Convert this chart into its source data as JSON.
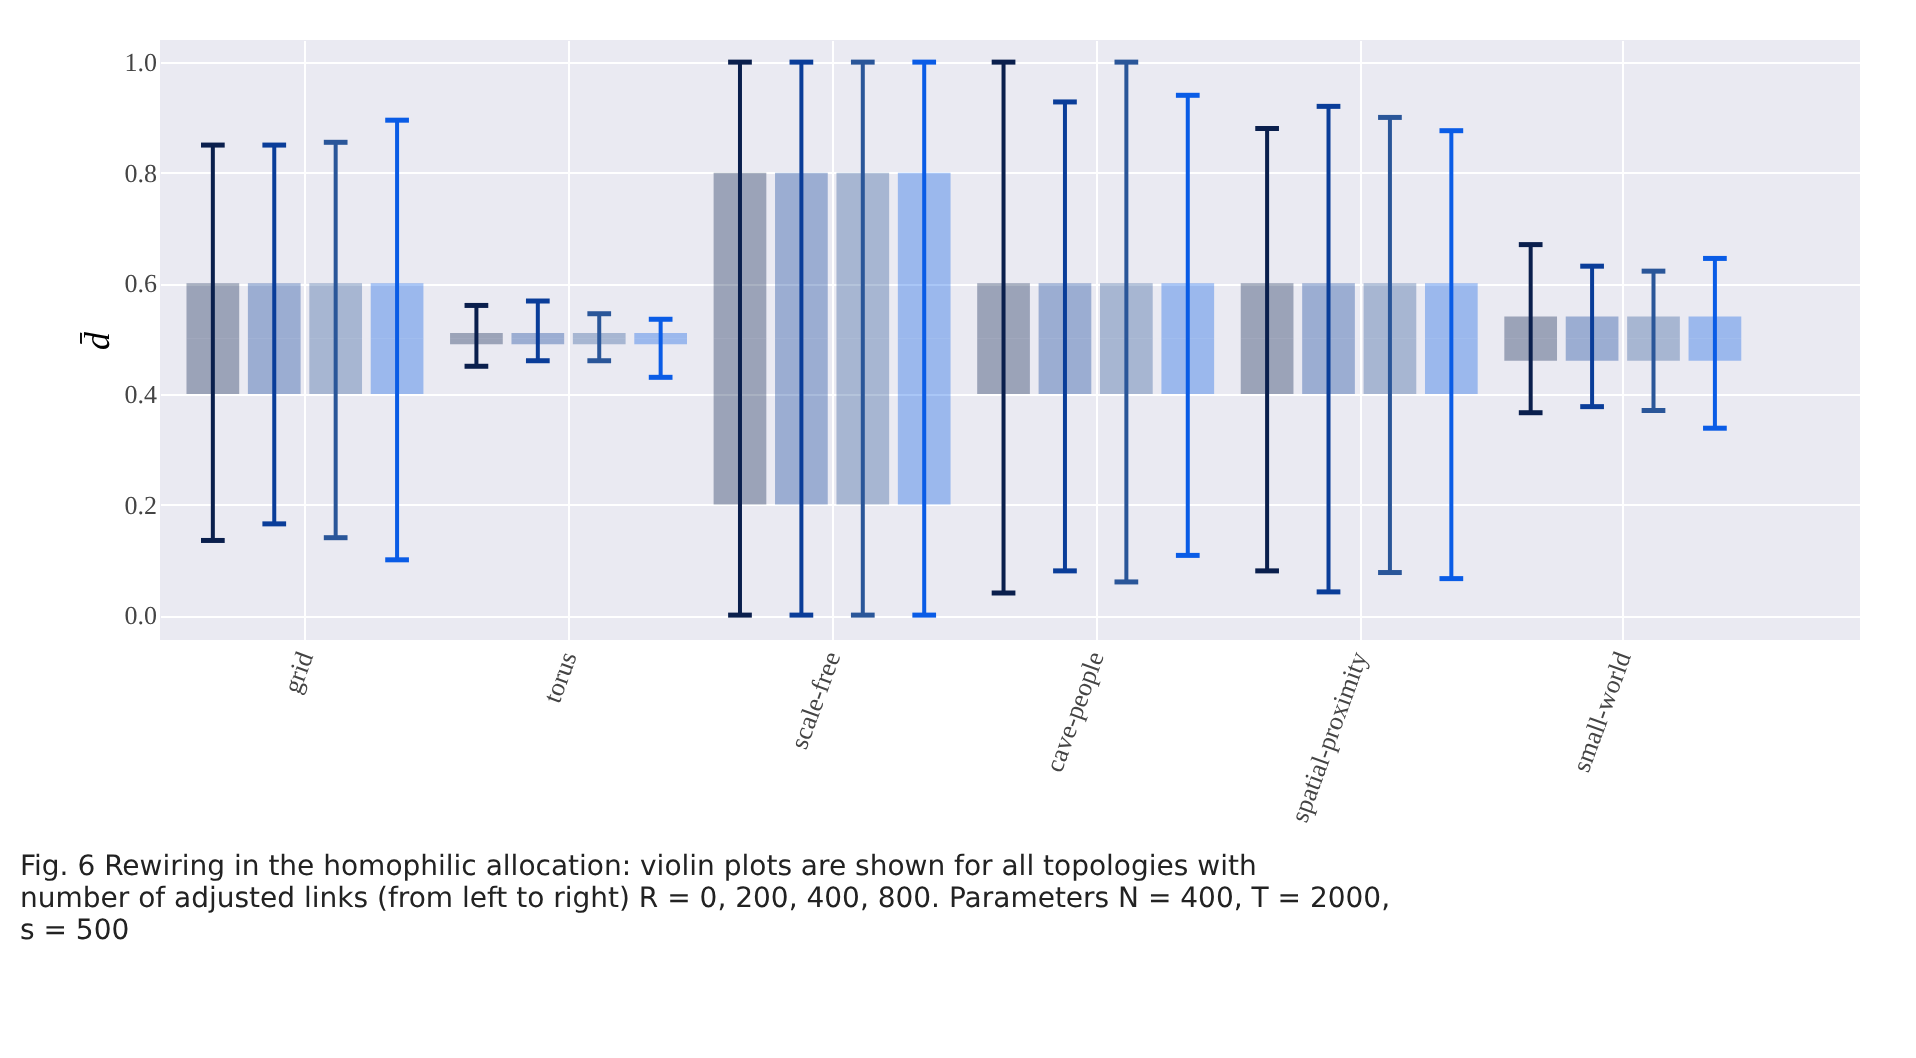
{
  "chart_data": {
    "type": "box",
    "ylabel": "d̄",
    "categories": [
      "grid",
      "torus",
      "scale-free",
      "cave-people",
      "spatial-proximity",
      "small-world"
    ],
    "ylim": [
      -0.045,
      1.04
    ],
    "yticks": [
      {
        "value": 0,
        "label": "0.0"
      },
      {
        "value": 0.2,
        "label": "0.2"
      },
      {
        "value": 0.4,
        "label": "0.4"
      },
      {
        "value": 0.6,
        "label": "0.6"
      },
      {
        "value": 0.8,
        "label": "0.8"
      },
      {
        "value": 1,
        "label": "1.0"
      }
    ],
    "grid": true,
    "series": [
      {
        "color": "#0a1f4d",
        "boxes": [
          {
            "low": 0.135,
            "q1": 0.4,
            "median": 0.5,
            "q3": 0.6,
            "high": 0.85
          },
          {
            "low": 0.45,
            "q1": 0.49,
            "median": 0.5,
            "q3": 0.51,
            "high": 0.56
          },
          {
            "low": 0,
            "q1": 0.2,
            "median": 0.5,
            "q3": 0.8,
            "high": 1
          },
          {
            "low": 0.04,
            "q1": 0.4,
            "median": 0.5,
            "q3": 0.6,
            "high": 1
          },
          {
            "low": 0.08,
            "q1": 0.4,
            "median": 0.5,
            "q3": 0.6,
            "high": 0.88
          },
          {
            "low": 0.366,
            "q1": 0.46,
            "median": 0.5,
            "q3": 0.54,
            "high": 0.67
          }
        ]
      },
      {
        "color": "#0a3d99",
        "boxes": [
          {
            "low": 0.165,
            "q1": 0.4,
            "median": 0.5,
            "q3": 0.6,
            "high": 0.85
          },
          {
            "low": 0.46,
            "q1": 0.49,
            "median": 0.5,
            "q3": 0.51,
            "high": 0.568
          },
          {
            "low": 0,
            "q1": 0.2,
            "median": 0.5,
            "q3": 0.8,
            "high": 1
          },
          {
            "low": 0.08,
            "q1": 0.4,
            "median": 0.5,
            "q3": 0.6,
            "high": 0.928
          },
          {
            "low": 0.042,
            "q1": 0.4,
            "median": 0.5,
            "q3": 0.6,
            "high": 0.92
          },
          {
            "low": 0.377,
            "q1": 0.46,
            "median": 0.5,
            "q3": 0.54,
            "high": 0.631
          }
        ]
      },
      {
        "color": "#2a5699",
        "boxes": [
          {
            "low": 0.14,
            "q1": 0.4,
            "median": 0.5,
            "q3": 0.6,
            "high": 0.855
          },
          {
            "low": 0.46,
            "q1": 0.49,
            "median": 0.5,
            "q3": 0.51,
            "high": 0.545
          },
          {
            "low": 0,
            "q1": 0.2,
            "median": 0.5,
            "q3": 0.8,
            "high": 1
          },
          {
            "low": 0.06,
            "q1": 0.4,
            "median": 0.5,
            "q3": 0.6,
            "high": 1
          },
          {
            "low": 0.077,
            "q1": 0.4,
            "median": 0.5,
            "q3": 0.6,
            "high": 0.9
          },
          {
            "low": 0.37,
            "q1": 0.46,
            "median": 0.5,
            "q3": 0.54,
            "high": 0.622
          }
        ]
      },
      {
        "color": "#0a5ce6",
        "boxes": [
          {
            "low": 0.1,
            "q1": 0.4,
            "median": 0.5,
            "q3": 0.6,
            "high": 0.895
          },
          {
            "low": 0.43,
            "q1": 0.49,
            "median": 0.5,
            "q3": 0.51,
            "high": 0.535
          },
          {
            "low": 0,
            "q1": 0.2,
            "median": 0.5,
            "q3": 0.8,
            "high": 1
          },
          {
            "low": 0.108,
            "q1": 0.4,
            "median": 0.5,
            "q3": 0.6,
            "high": 0.94
          },
          {
            "low": 0.066,
            "q1": 0.4,
            "median": 0.5,
            "q3": 0.6,
            "high": 0.876
          },
          {
            "low": 0.338,
            "q1": 0.46,
            "median": 0.5,
            "q3": 0.54,
            "high": 0.645
          }
        ]
      }
    ],
    "annotations": [
      "Fig. 6 Rewiring in the homophilic allocation: violin plots are shown for all topologies with number of adjusted links (from left to right) R = 0, 200, 400, 800. Parameters N = 400, T = 2000, s = 500"
    ]
  }
}
